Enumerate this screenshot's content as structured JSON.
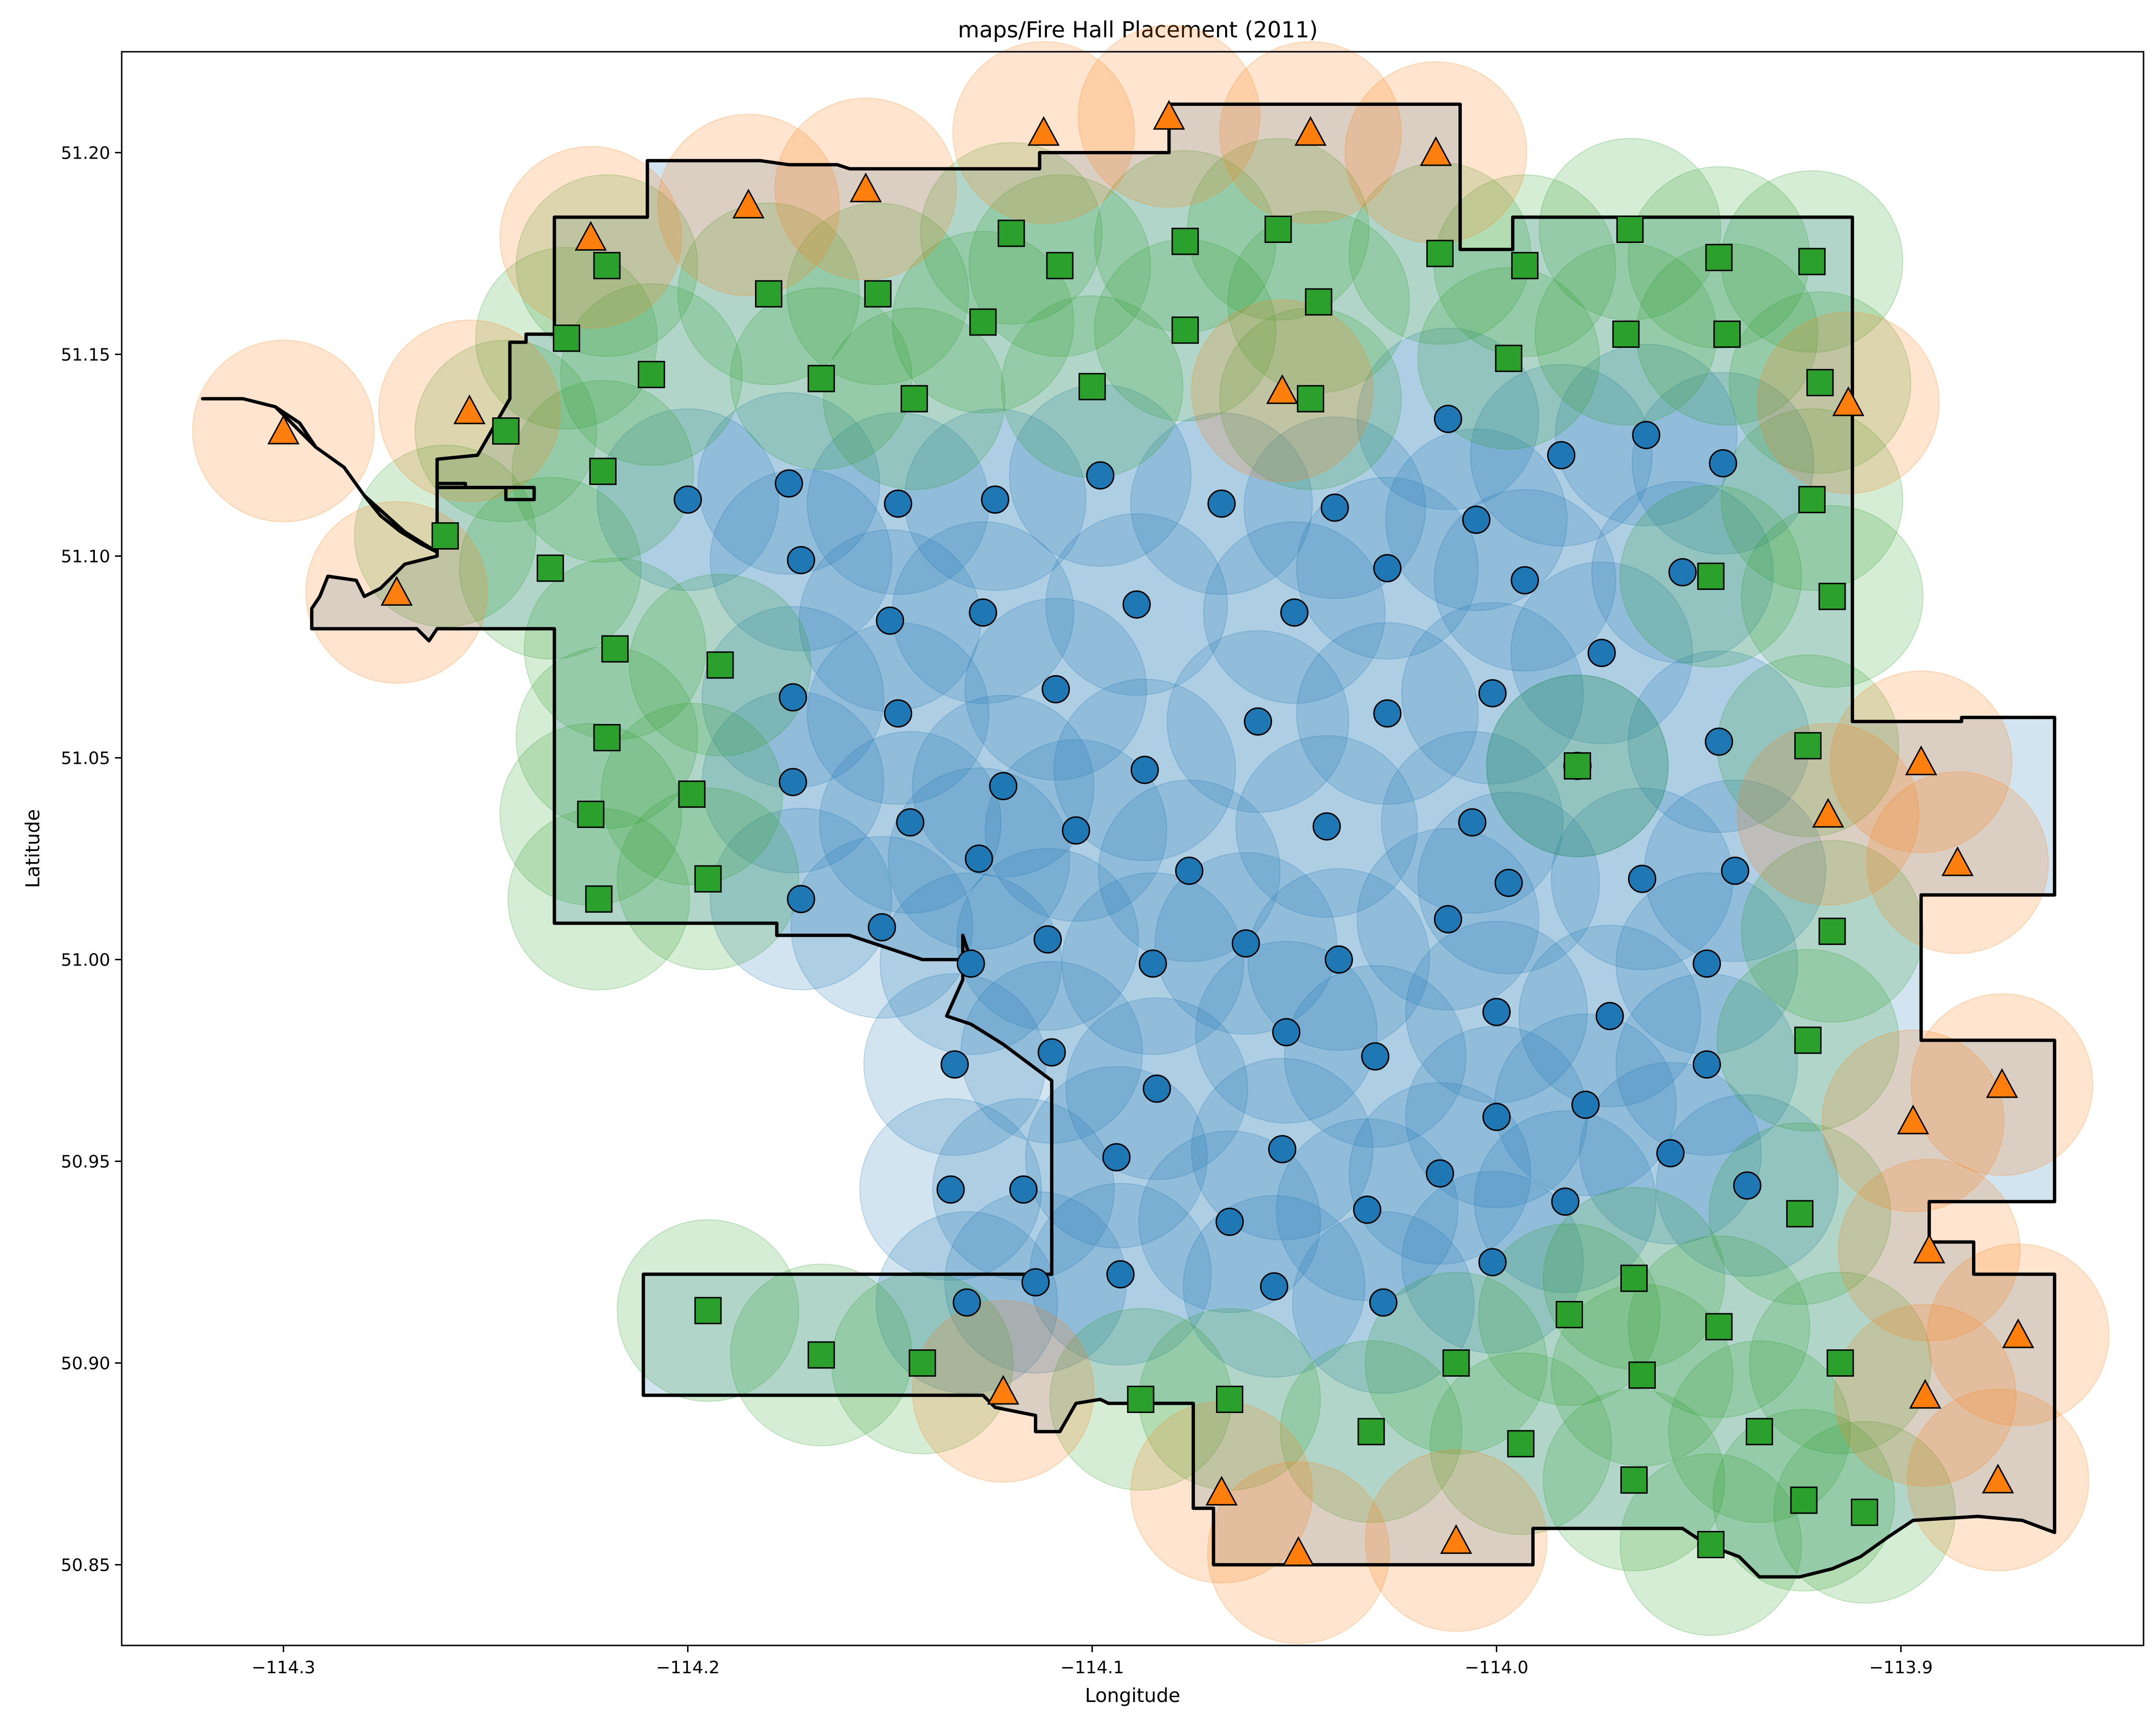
{
  "chart_data": {
    "type": "scatter",
    "title": "maps/Fire Hall Placement (2011)",
    "xlabel": "Longitude",
    "ylabel": "Latitude",
    "xlim": [
      -114.34,
      -113.84
    ],
    "ylim": [
      50.83,
      51.225
    ],
    "x_ticks": [
      -114.3,
      -114.2,
      -114.1,
      -114.0,
      -113.9
    ],
    "x_tick_labels": [
      "−114.3",
      "−114.2",
      "−114.1",
      "−114.0",
      "−113.9"
    ],
    "y_ticks": [
      50.85,
      50.9,
      50.95,
      51.0,
      51.05,
      51.1,
      51.15,
      51.2
    ],
    "y_tick_labels": [
      "50.85",
      "50.90",
      "50.95",
      "51.00",
      "51.05",
      "51.10",
      "51.15",
      "51.20"
    ],
    "grid": false,
    "legend": "none",
    "coverage_radius_deg": 0.0225,
    "boundary": [
      [
        -114.32,
        51.139
      ],
      [
        -114.31,
        51.139
      ],
      [
        -114.302,
        51.137
      ],
      [
        -114.296,
        51.133
      ],
      [
        -114.292,
        51.127
      ],
      [
        -114.285,
        51.122
      ],
      [
        -114.28,
        51.115
      ],
      [
        -114.276,
        51.11
      ],
      [
        -114.271,
        51.106
      ],
      [
        -114.266,
        51.103
      ],
      [
        -114.262,
        51.101
      ],
      [
        -114.262,
        51.1
      ],
      [
        -114.27,
        51.098
      ],
      [
        -114.276,
        51.092
      ],
      [
        -114.28,
        51.09
      ],
      [
        -114.282,
        51.094
      ],
      [
        -114.289,
        51.095
      ],
      [
        -114.291,
        51.09
      ],
      [
        -114.293,
        51.087
      ],
      [
        -114.293,
        51.082
      ],
      [
        -114.267,
        51.082
      ],
      [
        -114.264,
        51.079
      ],
      [
        -114.262,
        51.082
      ],
      [
        -114.233,
        51.082
      ],
      [
        -114.233,
        51.009
      ],
      [
        -114.178,
        51.009
      ],
      [
        -114.178,
        51.006
      ],
      [
        -114.16,
        51.006
      ],
      [
        -114.142,
        51.0
      ],
      [
        -114.13,
        51.0
      ],
      [
        -114.132,
        51.006
      ],
      [
        -114.132,
        50.995
      ],
      [
        -114.136,
        50.986
      ],
      [
        -114.13,
        50.984
      ],
      [
        -114.122,
        50.979
      ],
      [
        -114.11,
        50.97
      ],
      [
        -114.11,
        50.922
      ],
      [
        -114.211,
        50.922
      ],
      [
        -114.211,
        50.892
      ],
      [
        -114.127,
        50.892
      ],
      [
        -114.124,
        50.889
      ],
      [
        -114.114,
        50.887
      ],
      [
        -114.114,
        50.883
      ],
      [
        -114.108,
        50.883
      ],
      [
        -114.104,
        50.89
      ],
      [
        -114.098,
        50.891
      ],
      [
        -114.096,
        50.89
      ],
      [
        -114.075,
        50.89
      ],
      [
        -114.075,
        50.864
      ],
      [
        -114.07,
        50.864
      ],
      [
        -114.07,
        50.85
      ],
      [
        -113.991,
        50.85
      ],
      [
        -113.991,
        50.859
      ],
      [
        -113.954,
        50.859
      ],
      [
        -113.948,
        50.855
      ],
      [
        -113.94,
        50.852
      ],
      [
        -113.935,
        50.847
      ],
      [
        -113.925,
        50.847
      ],
      [
        -113.917,
        50.849
      ],
      [
        -113.91,
        50.852
      ],
      [
        -113.903,
        50.857
      ],
      [
        -113.897,
        50.861
      ],
      [
        -113.881,
        50.862
      ],
      [
        -113.87,
        50.861
      ],
      [
        -113.862,
        50.858
      ],
      [
        -113.862,
        50.922
      ],
      [
        -113.882,
        50.922
      ],
      [
        -113.882,
        50.93
      ],
      [
        -113.893,
        50.93
      ],
      [
        -113.893,
        50.94
      ],
      [
        -113.862,
        50.94
      ],
      [
        -113.862,
        50.98
      ],
      [
        -113.895,
        50.98
      ],
      [
        -113.895,
        51.016
      ],
      [
        -113.862,
        51.016
      ],
      [
        -113.862,
        51.06
      ],
      [
        -113.885,
        51.06
      ],
      [
        -113.885,
        51.059
      ],
      [
        -113.912,
        51.059
      ],
      [
        -113.912,
        51.184
      ],
      [
        -113.996,
        51.184
      ],
      [
        -113.996,
        51.176
      ],
      [
        -114.009,
        51.176
      ],
      [
        -114.009,
        51.212
      ],
      [
        -114.081,
        51.212
      ],
      [
        -114.081,
        51.2
      ],
      [
        -114.113,
        51.2
      ],
      [
        -114.113,
        51.196
      ],
      [
        -114.16,
        51.196
      ],
      [
        -114.163,
        51.197
      ],
      [
        -114.175,
        51.197
      ],
      [
        -114.182,
        51.198
      ],
      [
        -114.21,
        51.198
      ],
      [
        -114.21,
        51.184
      ],
      [
        -114.233,
        51.184
      ],
      [
        -114.233,
        51.155
      ],
      [
        -114.24,
        51.155
      ],
      [
        -114.24,
        51.153
      ],
      [
        -114.244,
        51.153
      ],
      [
        -114.244,
        51.139
      ],
      [
        -114.252,
        51.125
      ],
      [
        -114.262,
        51.124
      ],
      [
        -114.262,
        51.12
      ],
      [
        -114.262,
        51.117
      ],
      [
        -114.245,
        51.117
      ],
      [
        -114.245,
        51.114
      ],
      [
        -114.238,
        51.114
      ],
      [
        -114.238,
        51.117
      ],
      [
        -114.255,
        51.117
      ],
      [
        -114.255,
        51.118
      ],
      [
        -114.262,
        51.118
      ],
      [
        -114.262,
        51.101
      ],
      [
        -114.27,
        51.106
      ],
      [
        -114.28,
        51.115
      ],
      [
        -114.285,
        51.122
      ],
      [
        -114.292,
        51.127
      ],
      [
        -114.302,
        51.137
      ],
      [
        -114.31,
        51.139
      ],
      [
        -114.32,
        51.139
      ]
    ],
    "series": [
      {
        "marker": "circle",
        "color": "#1f77b4",
        "points": [
          [
            -114.175,
            51.118
          ],
          [
            -114.2,
            51.114
          ],
          [
            -114.172,
            51.099
          ],
          [
            -114.148,
            51.113
          ],
          [
            -114.124,
            51.114
          ],
          [
            -114.098,
            51.12
          ],
          [
            -114.068,
            51.113
          ],
          [
            -114.04,
            51.112
          ],
          [
            -114.012,
            51.134
          ],
          [
            -113.984,
            51.125
          ],
          [
            -113.963,
            51.13
          ],
          [
            -113.944,
            51.123
          ],
          [
            -114.005,
            51.109
          ],
          [
            -113.993,
            51.094
          ],
          [
            -114.027,
            51.097
          ],
          [
            -114.05,
            51.086
          ],
          [
            -114.089,
            51.088
          ],
          [
            -114.127,
            51.086
          ],
          [
            -114.15,
            51.084
          ],
          [
            -114.109,
            51.067
          ],
          [
            -114.148,
            51.061
          ],
          [
            -114.174,
            51.065
          ],
          [
            -114.174,
            51.044
          ],
          [
            -114.145,
            51.034
          ],
          [
            -114.122,
            51.043
          ],
          [
            -114.104,
            51.032
          ],
          [
            -114.087,
            51.047
          ],
          [
            -114.059,
            51.059
          ],
          [
            -114.027,
            51.061
          ],
          [
            -114.001,
            51.066
          ],
          [
            -113.974,
            51.076
          ],
          [
            -113.945,
            51.054
          ],
          [
            -113.98,
            51.048
          ],
          [
            -114.006,
            51.034
          ],
          [
            -114.042,
            51.033
          ],
          [
            -114.076,
            51.022
          ],
          [
            -114.128,
            51.025
          ],
          [
            -114.172,
            51.015
          ],
          [
            -114.152,
            51.008
          ],
          [
            -114.13,
            50.999
          ],
          [
            -114.111,
            51.005
          ],
          [
            -114.085,
            50.999
          ],
          [
            -114.062,
            51.004
          ],
          [
            -114.039,
            51.0
          ],
          [
            -114.012,
            51.01
          ],
          [
            -113.997,
            51.019
          ],
          [
            -113.964,
            51.02
          ],
          [
            -113.941,
            51.022
          ],
          [
            -113.948,
            50.999
          ],
          [
            -113.972,
            50.986
          ],
          [
            -114.0,
            50.987
          ],
          [
            -114.052,
            50.982
          ],
          [
            -114.03,
            50.976
          ],
          [
            -114.084,
            50.968
          ],
          [
            -114.11,
            50.977
          ],
          [
            -114.134,
            50.974
          ],
          [
            -114.0,
            50.961
          ],
          [
            -113.978,
            50.964
          ],
          [
            -113.957,
            50.952
          ],
          [
            -113.948,
            50.974
          ],
          [
            -113.938,
            50.944
          ],
          [
            -113.983,
            50.94
          ],
          [
            -114.014,
            50.947
          ],
          [
            -114.053,
            50.953
          ],
          [
            -114.094,
            50.951
          ],
          [
            -114.135,
            50.943
          ],
          [
            -114.117,
            50.943
          ],
          [
            -114.066,
            50.935
          ],
          [
            -114.032,
            50.938
          ],
          [
            -114.001,
            50.925
          ],
          [
            -114.028,
            50.915
          ],
          [
            -114.055,
            50.919
          ],
          [
            -114.093,
            50.922
          ],
          [
            -114.114,
            50.92
          ],
          [
            -114.131,
            50.915
          ],
          [
            -113.954,
            51.096
          ]
        ]
      },
      {
        "marker": "square",
        "color": "#2ca02c",
        "points": [
          [
            -114.12,
            51.18
          ],
          [
            -114.077,
            51.178
          ],
          [
            -114.054,
            51.181
          ],
          [
            -114.014,
            51.175
          ],
          [
            -113.967,
            51.181
          ],
          [
            -113.945,
            51.174
          ],
          [
            -113.922,
            51.173
          ],
          [
            -113.993,
            51.172
          ],
          [
            -114.108,
            51.172
          ],
          [
            -114.22,
            51.172
          ],
          [
            -114.18,
            51.165
          ],
          [
            -114.153,
            51.165
          ],
          [
            -114.044,
            51.163
          ],
          [
            -114.127,
            51.158
          ],
          [
            -114.077,
            51.156
          ],
          [
            -113.968,
            51.155
          ],
          [
            -113.943,
            51.155
          ],
          [
            -114.23,
            51.154
          ],
          [
            -113.997,
            51.149
          ],
          [
            -114.209,
            51.145
          ],
          [
            -114.167,
            51.144
          ],
          [
            -114.144,
            51.139
          ],
          [
            -114.1,
            51.142
          ],
          [
            -114.046,
            51.139
          ],
          [
            -113.92,
            51.143
          ],
          [
            -114.245,
            51.131
          ],
          [
            -114.221,
            51.121
          ],
          [
            -114.26,
            51.105
          ],
          [
            -114.234,
            51.097
          ],
          [
            -113.922,
            51.114
          ],
          [
            -113.947,
            51.095
          ],
          [
            -113.917,
            51.09
          ],
          [
            -114.218,
            51.077
          ],
          [
            -114.192,
            51.073
          ],
          [
            -114.22,
            51.055
          ],
          [
            -113.923,
            51.053
          ],
          [
            -113.98,
            51.048
          ],
          [
            -114.199,
            51.041
          ],
          [
            -114.224,
            51.036
          ],
          [
            -114.195,
            51.02
          ],
          [
            -114.222,
            51.015
          ],
          [
            -113.917,
            51.007
          ],
          [
            -113.923,
            50.98
          ],
          [
            -113.925,
            50.937
          ],
          [
            -113.966,
            50.921
          ],
          [
            -113.945,
            50.909
          ],
          [
            -113.982,
            50.912
          ],
          [
            -114.195,
            50.913
          ],
          [
            -114.167,
            50.902
          ],
          [
            -114.142,
            50.9
          ],
          [
            -114.01,
            50.9
          ],
          [
            -113.964,
            50.897
          ],
          [
            -113.915,
            50.9
          ],
          [
            -114.088,
            50.891
          ],
          [
            -114.066,
            50.891
          ],
          [
            -114.031,
            50.883
          ],
          [
            -113.935,
            50.883
          ],
          [
            -113.994,
            50.88
          ],
          [
            -113.966,
            50.871
          ],
          [
            -113.924,
            50.866
          ],
          [
            -113.909,
            50.863
          ],
          [
            -113.947,
            50.855
          ]
        ]
      },
      {
        "marker": "triangle",
        "color": "#ff7f0e",
        "points": [
          [
            -114.112,
            51.205
          ],
          [
            -114.081,
            51.209
          ],
          [
            -114.046,
            51.205
          ],
          [
            -114.015,
            51.2
          ],
          [
            -114.156,
            51.191
          ],
          [
            -114.185,
            51.187
          ],
          [
            -114.224,
            51.179
          ],
          [
            -114.3,
            51.131
          ],
          [
            -114.254,
            51.136
          ],
          [
            -114.053,
            51.141
          ],
          [
            -113.913,
            51.138
          ],
          [
            -114.272,
            51.091
          ],
          [
            -113.895,
            51.049
          ],
          [
            -113.918,
            51.036
          ],
          [
            -113.886,
            51.024
          ],
          [
            -113.875,
            50.969
          ],
          [
            -113.897,
            50.96
          ],
          [
            -113.893,
            50.928
          ],
          [
            -113.871,
            50.907
          ],
          [
            -113.894,
            50.892
          ],
          [
            -113.876,
            50.871
          ],
          [
            -114.122,
            50.893
          ],
          [
            -114.068,
            50.868
          ],
          [
            -114.049,
            50.853
          ],
          [
            -114.01,
            50.856
          ]
        ]
      }
    ]
  }
}
